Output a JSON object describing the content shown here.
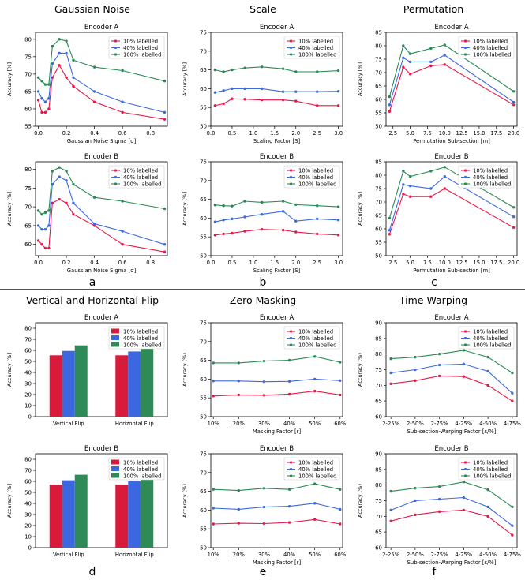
{
  "columns": [
    {
      "title": "Gaussian Noise",
      "letter": "a"
    },
    {
      "title": "Scale",
      "letter": "b"
    },
    {
      "title": "Permutation",
      "letter": "c"
    },
    {
      "title": "Vertical and Horizontal Flip",
      "letter": "d"
    },
    {
      "title": "Zero Masking",
      "letter": "e"
    },
    {
      "title": "Time Warping",
      "letter": "f"
    }
  ],
  "colors": {
    "s10": "#e8194a",
    "s40": "#3e6ae0",
    "s100": "#2a8a55",
    "bar10": "#d81b3a",
    "bar40": "#3b68e0",
    "bar100": "#2e8b57"
  },
  "legend": [
    "10% labelled",
    "40% labelled",
    "100% labelled"
  ],
  "chart_data": [
    {
      "id": "gn-a",
      "type": "line",
      "title": "Encoder A",
      "xlabel": "Gaussian Noise Sigma [σ]",
      "ylabel": "Accuracy [%]",
      "xlim": [
        -0.02,
        0.92
      ],
      "ylim": [
        55,
        82
      ],
      "xticks": [
        0.0,
        0.2,
        0.4,
        0.6,
        0.8
      ],
      "xticklabels": [
        "0.0",
        "0.2",
        "0.4",
        "0.6",
        "0.8"
      ],
      "yticks": [
        55,
        60,
        65,
        70,
        75,
        80
      ],
      "x": [
        0.0,
        0.025,
        0.05,
        0.075,
        0.1,
        0.15,
        0.2,
        0.25,
        0.4,
        0.6,
        0.9
      ],
      "series": [
        {
          "name": "10% labelled",
          "values": [
            62.5,
            59,
            59,
            60,
            69,
            72.5,
            69,
            66.5,
            62,
            59,
            57
          ]
        },
        {
          "name": "40% labelled",
          "values": [
            65,
            63,
            62,
            63,
            73,
            76,
            76,
            69,
            65,
            62,
            59
          ]
        },
        {
          "name": "100% labelled",
          "values": [
            69,
            68,
            67,
            67,
            78,
            80,
            79.5,
            74,
            72,
            71,
            68
          ]
        }
      ]
    },
    {
      "id": "gn-b",
      "type": "line",
      "title": "Encoder B",
      "xlabel": "Gaussian Noise Sigma [σ]",
      "ylabel": "Accuracy [%]",
      "xlim": [
        -0.02,
        0.92
      ],
      "ylim": [
        57,
        82
      ],
      "xticks": [
        0.0,
        0.2,
        0.4,
        0.6,
        0.8
      ],
      "xticklabels": [
        "0.0",
        "0.2",
        "0.4",
        "0.6",
        "0.8"
      ],
      "yticks": [
        60,
        65,
        70,
        75,
        80
      ],
      "x": [
        0.0,
        0.025,
        0.05,
        0.075,
        0.1,
        0.15,
        0.2,
        0.25,
        0.4,
        0.6,
        0.9
      ],
      "series": [
        {
          "name": "10% labelled",
          "values": [
            61,
            60,
            59,
            59,
            71,
            72,
            71,
            68,
            65,
            60,
            58
          ]
        },
        {
          "name": "40% labelled",
          "values": [
            65,
            64,
            64,
            65,
            76,
            78,
            77,
            71,
            65.5,
            63.5,
            60
          ]
        },
        {
          "name": "100% labelled",
          "values": [
            69,
            68,
            68.5,
            69,
            79.5,
            80.5,
            79.5,
            76,
            72.5,
            71.5,
            69.5
          ]
        }
      ]
    },
    {
      "id": "sc-a",
      "type": "line",
      "title": "Encoder A",
      "xlabel": "Scaling Factor [S]",
      "ylabel": "Accuracy [%]",
      "xlim": [
        0,
        3.1
      ],
      "ylim": [
        50,
        75
      ],
      "xticks": [
        0.0,
        0.5,
        1.0,
        1.5,
        2.0,
        2.5,
        3.0
      ],
      "xticklabels": [
        "0.0",
        "0.5",
        "1.0",
        "1.5",
        "2.0",
        "2.5",
        "3.0"
      ],
      "yticks": [
        50,
        55,
        60,
        65,
        70,
        75
      ],
      "x": [
        0.1,
        0.3,
        0.5,
        0.8,
        1.2,
        1.7,
        2.0,
        2.5,
        3.0
      ],
      "series": [
        {
          "name": "10% labelled",
          "values": [
            55.5,
            56,
            57.3,
            57.2,
            57,
            57,
            56.7,
            55.5,
            55.5
          ]
        },
        {
          "name": "40% labelled",
          "values": [
            59,
            59.5,
            60,
            60,
            60,
            59.2,
            59.2,
            59.2,
            59.3
          ]
        },
        {
          "name": "100% labelled",
          "values": [
            65,
            64.5,
            65,
            65.5,
            65.8,
            65.3,
            64.5,
            64.5,
            64.8
          ]
        }
      ]
    },
    {
      "id": "sc-b",
      "type": "line",
      "title": "Encoder B",
      "xlabel": "Scaling Factor [S]",
      "ylabel": "Accuracy [%]",
      "xlim": [
        0,
        3.1
      ],
      "ylim": [
        50,
        75
      ],
      "xticks": [
        0.0,
        0.5,
        1.0,
        1.5,
        2.0,
        2.5,
        3.0
      ],
      "xticklabels": [
        "0.0",
        "0.5",
        "1.0",
        "1.5",
        "2.0",
        "2.5",
        "3.0"
      ],
      "yticks": [
        50,
        55,
        60,
        65,
        70,
        75
      ],
      "x": [
        0.1,
        0.3,
        0.5,
        0.8,
        1.2,
        1.7,
        2.0,
        2.5,
        3.0
      ],
      "series": [
        {
          "name": "10% labelled",
          "values": [
            55.5,
            55.8,
            56,
            56.5,
            57,
            56.8,
            56.3,
            55.8,
            55.5
          ]
        },
        {
          "name": "40% labelled",
          "values": [
            59,
            59.5,
            59.8,
            60.3,
            61,
            61.8,
            59.2,
            59.8,
            59.5
          ]
        },
        {
          "name": "100% labelled",
          "values": [
            63.5,
            63.3,
            63.2,
            64.5,
            64.2,
            64.5,
            63.6,
            63.3,
            63
          ]
        }
      ]
    },
    {
      "id": "pm-a",
      "type": "line",
      "title": "Encoder A",
      "xlabel": "Permutation Sub-section [m]",
      "ylabel": "Accuracy [%]",
      "xlim": [
        1.5,
        20.5
      ],
      "ylim": [
        50,
        85
      ],
      "xticks": [
        2.5,
        5.0,
        7.5,
        10.0,
        12.5,
        15.0,
        17.5,
        20.0
      ],
      "xticklabels": [
        "2.5",
        "5.0",
        "7.5",
        "10.0",
        "12.5",
        "15.0",
        "17.5",
        "20.0"
      ],
      "yticks": [
        50,
        55,
        60,
        65,
        70,
        75,
        80,
        85
      ],
      "x": [
        2,
        4,
        5,
        8,
        10,
        20
      ],
      "series": [
        {
          "name": "10% labelled",
          "values": [
            55.5,
            72,
            69.5,
            72.5,
            73,
            58
          ]
        },
        {
          "name": "40% labelled",
          "values": [
            58,
            75.5,
            74,
            74,
            76.5,
            59
          ]
        },
        {
          "name": "100% labelled",
          "values": [
            61,
            80,
            77,
            79,
            80.3,
            63
          ]
        }
      ]
    },
    {
      "id": "pm-b",
      "type": "line",
      "title": "Encoder B",
      "xlabel": "Permutation Sub-section [m]",
      "ylabel": "Accuracy [%]",
      "xlim": [
        1.5,
        20.5
      ],
      "ylim": [
        50,
        85
      ],
      "xticks": [
        2.5,
        5.0,
        7.5,
        10.0,
        12.5,
        15.0,
        17.5,
        20.0
      ],
      "xticklabels": [
        "2.5",
        "5.0",
        "7.5",
        "10.0",
        "12.5",
        "15.0",
        "17.5",
        "20.0"
      ],
      "yticks": [
        50,
        55,
        60,
        65,
        70,
        75,
        80,
        85
      ],
      "x": [
        2,
        4,
        5,
        8,
        10,
        20
      ],
      "series": [
        {
          "name": "10% labelled",
          "values": [
            58,
            73,
            72,
            72,
            75,
            60.5
          ]
        },
        {
          "name": "40% labelled",
          "values": [
            59.5,
            76.5,
            76,
            75,
            79.5,
            64.5
          ]
        },
        {
          "name": "100% labelled",
          "values": [
            64,
            81.5,
            79.5,
            81.5,
            83,
            68
          ]
        }
      ]
    },
    {
      "id": "fl-a",
      "type": "bar",
      "title": "Encoder A",
      "xlabel": "",
      "ylabel": "Accuracy [%]",
      "ylim": [
        0,
        85
      ],
      "yticks": [
        0,
        10,
        20,
        30,
        40,
        50,
        60,
        70,
        80
      ],
      "categories": [
        "Vertical Flip",
        "Horizontal Flip"
      ],
      "series": [
        {
          "name": "10% labelled",
          "values": [
            55.5,
            55.5
          ]
        },
        {
          "name": "40% labelled",
          "values": [
            59.5,
            59
          ]
        },
        {
          "name": "100% labelled",
          "values": [
            64.5,
            63.5
          ]
        }
      ]
    },
    {
      "id": "fl-b",
      "type": "bar",
      "title": "Encoder B",
      "xlabel": "",
      "ylabel": "Accuracy [%]",
      "ylim": [
        0,
        85
      ],
      "yticks": [
        0,
        10,
        20,
        30,
        40,
        50,
        60,
        70,
        80
      ],
      "categories": [
        "Vertical Flip",
        "Horizontal Flip"
      ],
      "series": [
        {
          "name": "10% labelled",
          "values": [
            57,
            57
          ]
        },
        {
          "name": "40% labelled",
          "values": [
            61,
            60
          ]
        },
        {
          "name": "100% labelled",
          "values": [
            66,
            65
          ]
        }
      ]
    },
    {
      "id": "zm-a",
      "type": "line",
      "title": "Encoder A",
      "xlabel": "Masking Factor [r]",
      "ylabel": "Accuracy (%)",
      "xlim": [
        9,
        61
      ],
      "ylim": [
        50,
        75
      ],
      "xticks": [
        10,
        20,
        30,
        40,
        50,
        60
      ],
      "xticklabels": [
        "10%",
        "20%",
        "30%",
        "40%",
        "50%",
        "60%"
      ],
      "yticks": [
        50,
        55,
        60,
        65,
        70,
        75
      ],
      "x": [
        10,
        20,
        30,
        40,
        50,
        60
      ],
      "series": [
        {
          "name": "10% labelled",
          "values": [
            55.5,
            55.8,
            55.7,
            56,
            56.8,
            55.8
          ]
        },
        {
          "name": "40% labelled",
          "values": [
            59.5,
            59.5,
            59.3,
            59.4,
            60,
            59.6
          ]
        },
        {
          "name": "100% labelled",
          "values": [
            64.3,
            64.3,
            64.8,
            65,
            66,
            64.5
          ]
        }
      ]
    },
    {
      "id": "zm-b",
      "type": "line",
      "title": "Encoder B",
      "xlabel": "Masking Factor [r]",
      "ylabel": "Accuracy (%)",
      "xlim": [
        9,
        61
      ],
      "ylim": [
        50,
        75
      ],
      "xticks": [
        10,
        20,
        30,
        40,
        50,
        60
      ],
      "xticklabels": [
        "10%",
        "20%",
        "30%",
        "40%",
        "50%",
        "60%"
      ],
      "yticks": [
        50,
        55,
        60,
        65,
        70,
        75
      ],
      "x": [
        10,
        20,
        30,
        40,
        50,
        60
      ],
      "series": [
        {
          "name": "10% labelled",
          "values": [
            56.3,
            56.5,
            56.4,
            56.7,
            57.5,
            56.3
          ]
        },
        {
          "name": "40% labelled",
          "values": [
            60.5,
            60.2,
            60.8,
            61,
            61.8,
            60.2
          ]
        },
        {
          "name": "100% labelled",
          "values": [
            65.5,
            65.2,
            65.8,
            65.5,
            67,
            65.5
          ]
        }
      ]
    },
    {
      "id": "tw-a",
      "type": "line",
      "title": "Encoder A",
      "xlabel": "Sub-section-Warping Factor [s/%]",
      "ylabel": "Accuracy (%)",
      "xlim": [
        -0.2,
        5.2
      ],
      "ylim": [
        60,
        90
      ],
      "xticks": [
        0,
        1,
        2,
        3,
        4,
        5
      ],
      "xticklabels": [
        "2-25%",
        "2-50%",
        "2-75%",
        "4-25%",
        "4-50%",
        "4-75%"
      ],
      "yticks": [
        60,
        65,
        70,
        75,
        80,
        85,
        90
      ],
      "x": [
        0,
        1,
        2,
        3,
        4,
        5
      ],
      "series": [
        {
          "name": "10% labelled",
          "values": [
            70.5,
            71.5,
            73,
            72.8,
            70,
            65
          ]
        },
        {
          "name": "40% labelled",
          "values": [
            74,
            75,
            76.5,
            76.8,
            74.5,
            67.5
          ]
        },
        {
          "name": "100% labelled",
          "values": [
            78.5,
            79,
            80,
            81.2,
            79,
            74
          ]
        }
      ]
    },
    {
      "id": "tw-b",
      "type": "line",
      "title": "Encoder B",
      "xlabel": "Sub-section-Warping Factor [s/%]",
      "ylabel": "Accuracy (%)",
      "xlim": [
        -0.2,
        5.2
      ],
      "ylim": [
        60,
        90
      ],
      "xticks": [
        0,
        1,
        2,
        3,
        4,
        5
      ],
      "xticklabels": [
        "2-25%",
        "2-50%",
        "2-75%",
        "4-25%",
        "4-50%",
        "4-75%"
      ],
      "yticks": [
        60,
        65,
        70,
        75,
        80,
        85,
        90
      ],
      "x": [
        0,
        1,
        2,
        3,
        4,
        5
      ],
      "series": [
        {
          "name": "10% labelled",
          "values": [
            68.5,
            70.5,
            71.5,
            72,
            70,
            64
          ]
        },
        {
          "name": "40% labelled",
          "values": [
            72,
            75,
            75.5,
            76,
            73,
            67
          ]
        },
        {
          "name": "100% labelled",
          "values": [
            78,
            79,
            79.5,
            81,
            78.5,
            73
          ]
        }
      ]
    }
  ]
}
